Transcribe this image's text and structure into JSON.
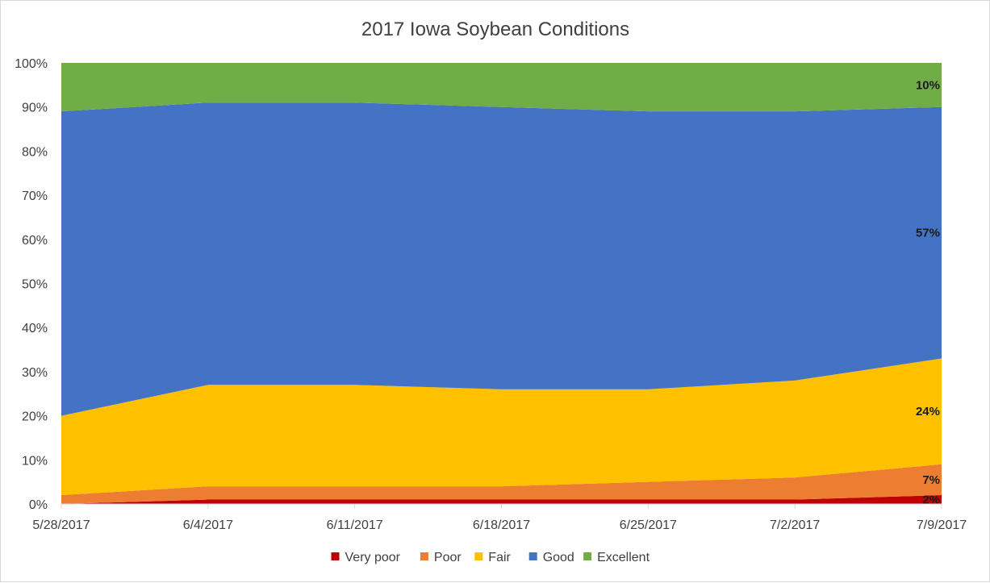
{
  "chart_data": {
    "type": "area",
    "stacked": "percent",
    "title": "2017 Iowa Soybean Conditions",
    "categories": [
      "5/28/2017",
      "6/4/2017",
      "6/11/2017",
      "6/18/2017",
      "6/25/2017",
      "7/2/2017",
      "7/9/2017"
    ],
    "ylim": [
      0,
      100
    ],
    "yticks": [
      "0%",
      "10%",
      "20%",
      "30%",
      "40%",
      "50%",
      "60%",
      "70%",
      "80%",
      "90%",
      "100%"
    ],
    "grid": false,
    "legend": "bottom",
    "series": [
      {
        "name": "Very poor",
        "color": "#c00000",
        "values": [
          0,
          1,
          1,
          1,
          1,
          1,
          2
        ]
      },
      {
        "name": "Poor",
        "color": "#ed7d31",
        "values": [
          2,
          3,
          3,
          3,
          4,
          5,
          7
        ]
      },
      {
        "name": "Fair",
        "color": "#ffc000",
        "values": [
          18,
          23,
          23,
          22,
          21,
          22,
          24
        ]
      },
      {
        "name": "Good",
        "color": "#4472c4",
        "values": [
          69,
          64,
          64,
          64,
          63,
          61,
          57
        ]
      },
      {
        "name": "Excellent",
        "color": "#70ad47",
        "values": [
          11,
          9,
          9,
          10,
          11,
          11,
          10
        ]
      }
    ],
    "data_labels": [
      {
        "series": "Very poor",
        "text": "2%"
      },
      {
        "series": "Poor",
        "text": "7%"
      },
      {
        "series": "Fair",
        "text": "24%"
      },
      {
        "series": "Good",
        "text": "57%"
      },
      {
        "series": "Excellent",
        "text": "10%"
      }
    ]
  }
}
